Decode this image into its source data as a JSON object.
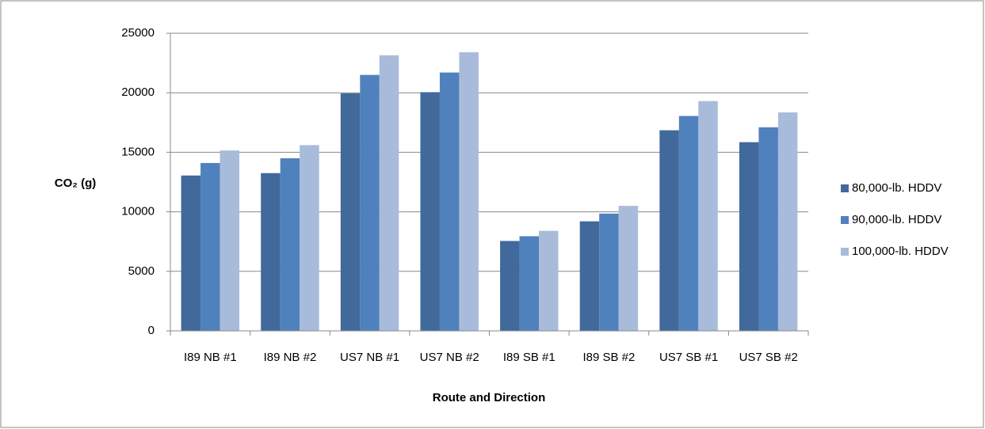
{
  "chart_data": {
    "type": "bar",
    "x_label": "Route and Direction",
    "y_label": "CO₂ (g)",
    "categories": [
      "I89 NB #1",
      "I89 NB #2",
      "US7 NB #1",
      "US7 NB #2",
      "I89 SB #1",
      "I89 SB #2",
      "US7 SB #1",
      "US7 SB #2"
    ],
    "series": [
      {
        "name": "80,000-lb. HDDV",
        "color": "#41699b",
        "values": [
          13050,
          13250,
          19950,
          20050,
          7550,
          9200,
          16850,
          15850
        ]
      },
      {
        "name": "90,000-lb. HDDV",
        "color": "#4f81bd",
        "values": [
          14100,
          14500,
          21500,
          21700,
          7950,
          9850,
          18050,
          17100
        ]
      },
      {
        "name": "100,000-lb. HDDV",
        "color": "#a9bbda",
        "values": [
          15150,
          15600,
          23150,
          23400,
          8400,
          10500,
          19300,
          18350
        ]
      }
    ],
    "ylim": [
      0,
      25000
    ],
    "yticks": [
      0,
      5000,
      10000,
      15000,
      20000,
      25000
    ],
    "grid": true,
    "legend": "right"
  }
}
